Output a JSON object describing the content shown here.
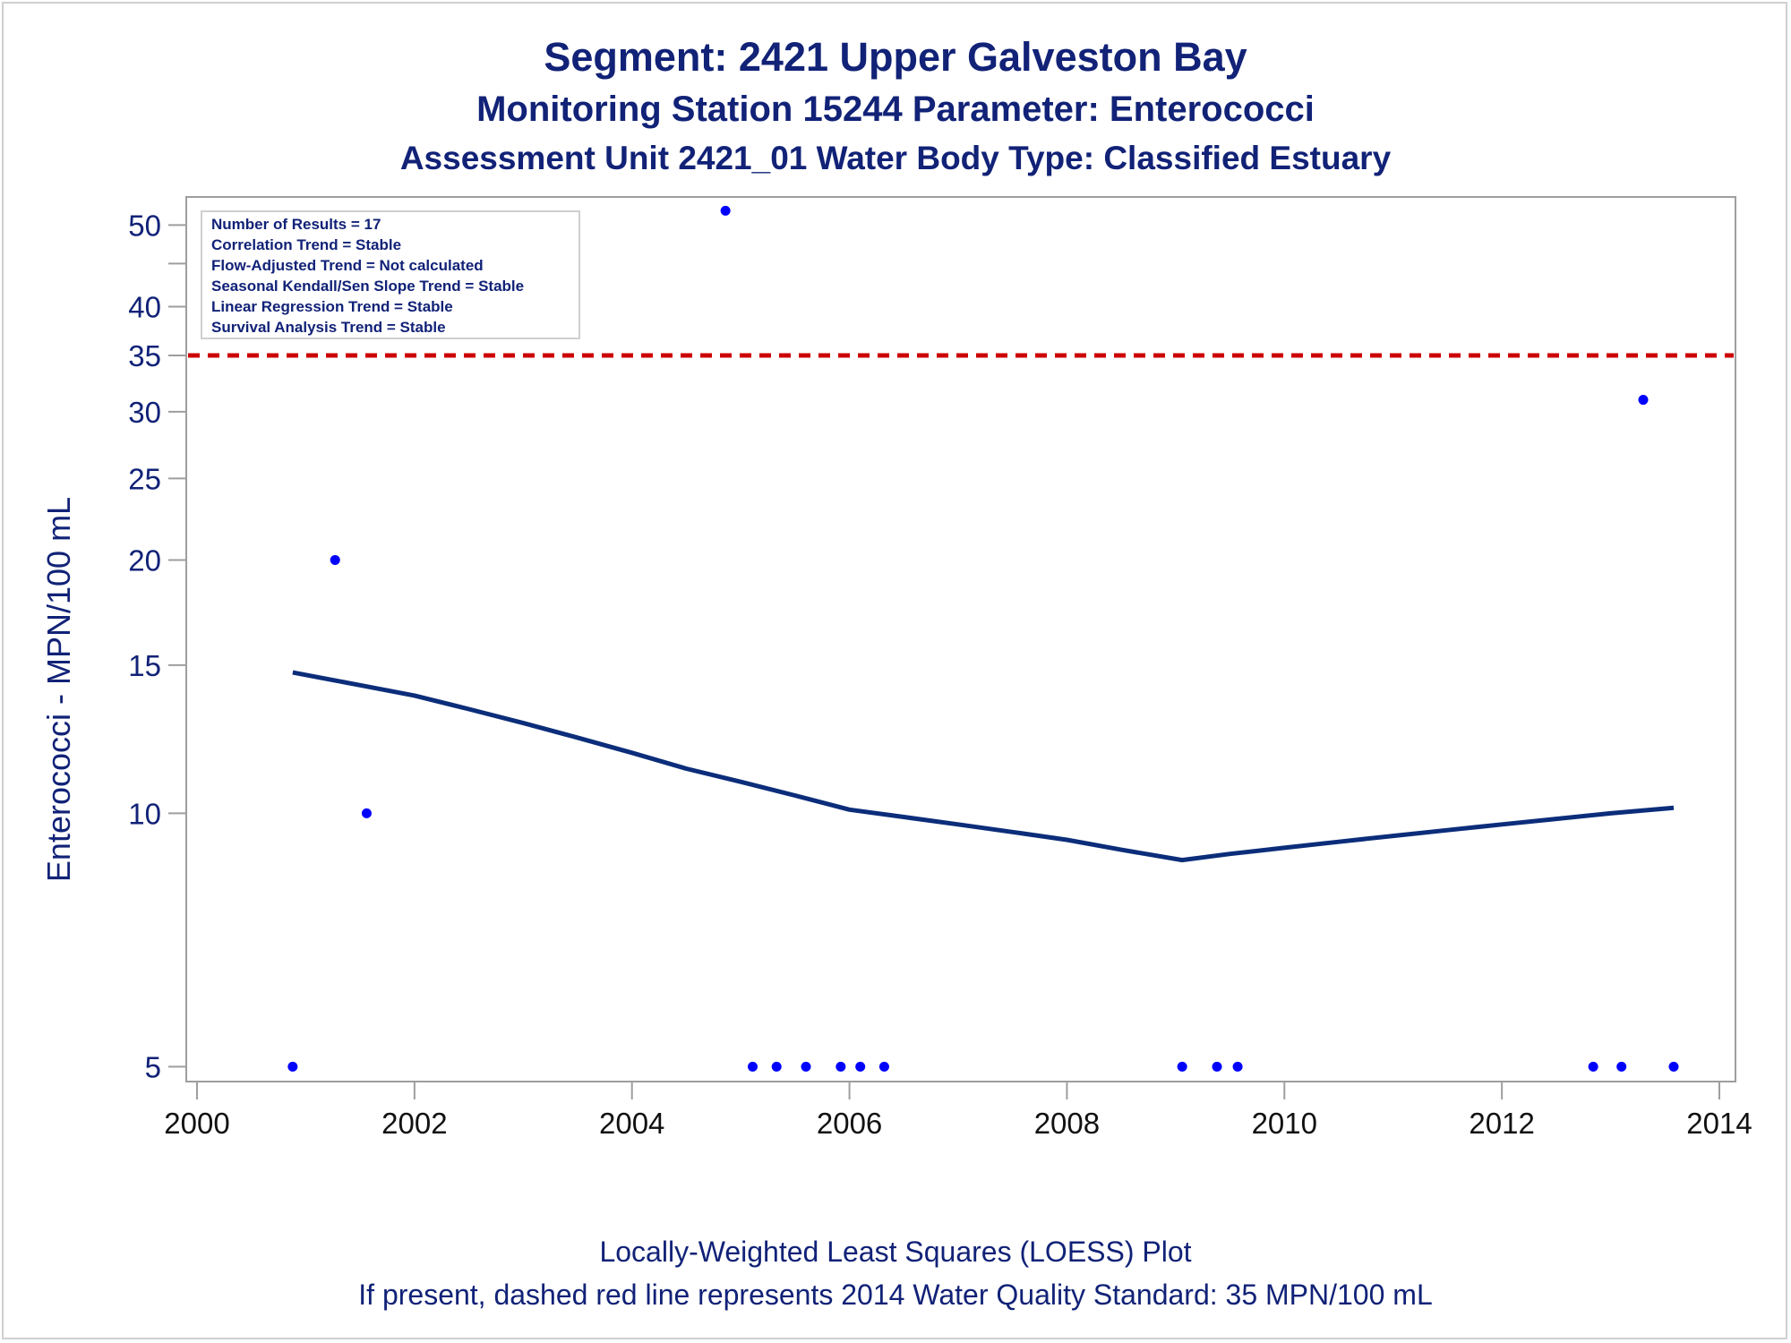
{
  "titles": {
    "line1": "Segment: 2421  Upper Galveston Bay",
    "line2": "Monitoring Station 15244 Parameter: Enterococci",
    "line3": "Assessment Unit 2421_01   Water Body Type: Classified Estuary"
  },
  "footnotes": {
    "line1": "Locally-Weighted Least Squares (LOESS) Plot",
    "line2": "If present, dashed red line represents 2014 Water Quality Standard: 35 MPN/100 mL"
  },
  "colors": {
    "text": "#112277",
    "points": "#0000ff",
    "loess": "#0b2d7a",
    "standard": "#cc0000",
    "frame": "#9e9e9e"
  },
  "chart_data": {
    "type": "scatter",
    "ylabel": "Enterococci - MPN/100 mL",
    "xlabel": "",
    "y_scale": "log",
    "xlim": [
      2000,
      2014
    ],
    "ylim": [
      4.8,
      54
    ],
    "x_ticks": [
      2000,
      2002,
      2004,
      2006,
      2008,
      2010,
      2012,
      2014
    ],
    "y_ticks": [
      5,
      10,
      15,
      20,
      25,
      30,
      35,
      40,
      50
    ],
    "inset": [
      "Number of Results = 17",
      "Correlation Trend = Stable",
      "Flow-Adjusted Trend = Not calculated",
      "Seasonal Kendall/Sen Slope Trend = Stable",
      "Linear Regression Trend = Stable",
      "Survival Analysis Trend = Stable"
    ],
    "standard_line": {
      "value": 35,
      "style": "dashed"
    },
    "points": [
      {
        "x": 2000.88,
        "y": 5
      },
      {
        "x": 2001.27,
        "y": 20
      },
      {
        "x": 2001.56,
        "y": 10
      },
      {
        "x": 2004.86,
        "y": 52
      },
      {
        "x": 2005.11,
        "y": 5
      },
      {
        "x": 2005.33,
        "y": 5
      },
      {
        "x": 2005.6,
        "y": 5
      },
      {
        "x": 2005.92,
        "y": 5
      },
      {
        "x": 2006.1,
        "y": 5
      },
      {
        "x": 2006.32,
        "y": 5
      },
      {
        "x": 2009.06,
        "y": 5
      },
      {
        "x": 2009.38,
        "y": 5
      },
      {
        "x": 2009.57,
        "y": 5
      },
      {
        "x": 2012.84,
        "y": 5
      },
      {
        "x": 2013.1,
        "y": 5
      },
      {
        "x": 2013.3,
        "y": 31
      },
      {
        "x": 2013.58,
        "y": 5
      }
    ],
    "loess": [
      {
        "x": 2000.88,
        "y": 14.7
      },
      {
        "x": 2001.5,
        "y": 14.2
      },
      {
        "x": 2002.0,
        "y": 13.8
      },
      {
        "x": 2002.5,
        "y": 13.3
      },
      {
        "x": 2003.0,
        "y": 12.8
      },
      {
        "x": 2003.5,
        "y": 12.3
      },
      {
        "x": 2004.0,
        "y": 11.8
      },
      {
        "x": 2004.5,
        "y": 11.3
      },
      {
        "x": 2005.0,
        "y": 10.9
      },
      {
        "x": 2005.5,
        "y": 10.5
      },
      {
        "x": 2006.0,
        "y": 10.1
      },
      {
        "x": 2006.5,
        "y": 9.9
      },
      {
        "x": 2007.0,
        "y": 9.7
      },
      {
        "x": 2007.5,
        "y": 9.5
      },
      {
        "x": 2008.0,
        "y": 9.3
      },
      {
        "x": 2008.5,
        "y": 9.05
      },
      {
        "x": 2009.06,
        "y": 8.8
      },
      {
        "x": 2009.5,
        "y": 8.95
      },
      {
        "x": 2010.0,
        "y": 9.1
      },
      {
        "x": 2010.5,
        "y": 9.25
      },
      {
        "x": 2011.0,
        "y": 9.4
      },
      {
        "x": 2011.5,
        "y": 9.55
      },
      {
        "x": 2012.0,
        "y": 9.7
      },
      {
        "x": 2012.5,
        "y": 9.85
      },
      {
        "x": 2013.0,
        "y": 10.0
      },
      {
        "x": 2013.58,
        "y": 10.15
      }
    ]
  }
}
